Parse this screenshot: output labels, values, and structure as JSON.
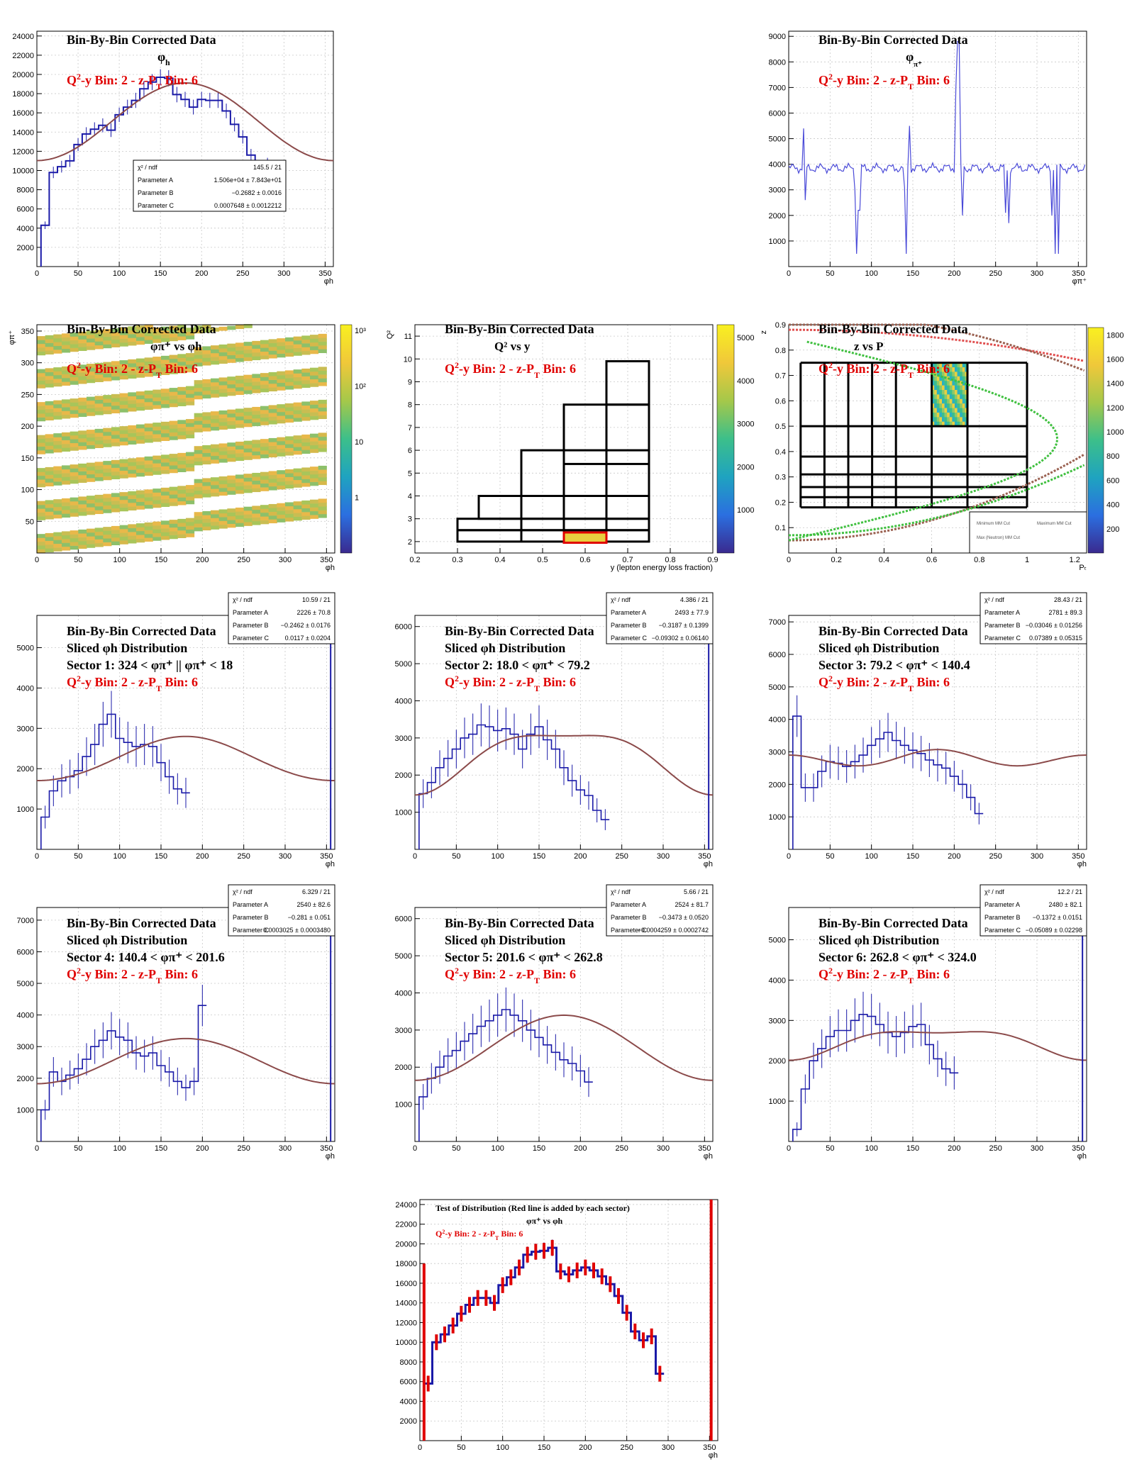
{
  "colors": {
    "hist": "#1a1aa8",
    "fit": "#8b4a4a",
    "red": "#e00000",
    "frame": "#000000",
    "grid": "#c8c8c8"
  },
  "common": {
    "title": "Bin-By-Bin Corrected Data",
    "bin": "Q²-y Bin: 2  -  z-Pₜ Bin: 6",
    "bin_parts": [
      "Q",
      "2",
      "-y Bin: 2  -  z-P",
      "T",
      " Bin: 6"
    ]
  },
  "chart_data": [
    {
      "id": "phi_h",
      "type": "histogram",
      "title": "Bin-By-Bin Corrected Data",
      "subtitle": "φh",
      "xlabel": "φh",
      "xlim": [
        0,
        360
      ],
      "ylim": [
        0,
        24500
      ],
      "yticks": [
        2000,
        4000,
        6000,
        8000,
        10000,
        12000,
        14000,
        16000,
        18000,
        20000,
        22000,
        24000
      ],
      "xticks": [
        0,
        50,
        100,
        150,
        200,
        250,
        300,
        350
      ],
      "bin_width": 10,
      "values": [
        4300,
        9800,
        10400,
        11000,
        12700,
        13800,
        14300,
        14700,
        14200,
        15800,
        16600,
        17300,
        18500,
        19200,
        19700,
        19600,
        17900,
        17400,
        16600,
        17400,
        17300,
        17300,
        16200,
        14800,
        13500,
        11600,
        10400,
        10700,
        6800
      ],
      "first_bin_start": 5,
      "fit": {
        "chi2_ndf": "145.5 / 21",
        "A": "1.506e+04 ± 7.843e+01",
        "B": "−0.2682 ± 0.0016",
        "C": "0.0007648 ± 0.0012212",
        "a": 15060,
        "b": -0.2682,
        "c": 0.00076
      }
    },
    {
      "id": "phi_pip",
      "type": "histogram",
      "title": "Bin-By-Bin Corrected Data",
      "subtitle": "φπ⁺",
      "xlabel": "φπ⁺",
      "xlim": [
        0,
        360
      ],
      "ylim": [
        0,
        9200
      ],
      "yticks": [
        1000,
        2000,
        3000,
        4000,
        5000,
        6000,
        7000,
        8000,
        9000
      ],
      "xticks": [
        0,
        50,
        100,
        150,
        200,
        250,
        300,
        350
      ],
      "baseline": 3850,
      "spikes": [
        [
          18,
          5400
        ],
        [
          20,
          2600
        ],
        [
          80,
          3000
        ],
        [
          82,
          500
        ],
        [
          85,
          2200
        ],
        [
          140,
          3100
        ],
        [
          142,
          500
        ],
        [
          146,
          5500
        ],
        [
          205,
          8800
        ],
        [
          202,
          7000
        ],
        [
          210,
          2000
        ],
        [
          262,
          2100
        ],
        [
          266,
          1700
        ],
        [
          318,
          2000
        ],
        [
          322,
          500
        ],
        [
          326,
          500
        ]
      ]
    },
    {
      "id": "phi_pip_vs_phi_h",
      "type": "heatmap",
      "title": "Bin-By-Bin Corrected Data",
      "subtitle": "φπ⁺ vs φh",
      "xlabel": "φh",
      "ylabel": "φπ⁺",
      "xlim": [
        0,
        360
      ],
      "ylim": [
        0,
        360
      ],
      "xticks": [
        0,
        50,
        100,
        150,
        200,
        250,
        300,
        350
      ],
      "yticks": [
        50,
        100,
        150,
        200,
        250,
        300,
        350
      ],
      "zscale": "log",
      "zticks": [
        "1",
        "10",
        "10²",
        "10³"
      ]
    },
    {
      "id": "q2_vs_y",
      "type": "heatmap",
      "title": "Bin-By-Bin Corrected Data",
      "subtitle": "Q² vs y",
      "xlabel": "y (lepton energy loss fraction)",
      "ylabel": "Q²",
      "xlim": [
        0.2,
        0.9
      ],
      "ylim": [
        1.5,
        11.5
      ],
      "xticks": [
        "0.2",
        "0.3",
        "0.4",
        "0.5",
        "0.6",
        "0.7",
        "0.8",
        "0.9"
      ],
      "yticks": [
        2,
        3,
        4,
        5,
        6,
        7,
        8,
        9,
        10,
        11
      ],
      "zticks": [
        "1000",
        "2000",
        "3000",
        "4000",
        "5000"
      ],
      "bin_boxes": [
        [
          0.3,
          0.75,
          2,
          2.5
        ],
        [
          0.3,
          0.75,
          2.5,
          3
        ],
        [
          0.35,
          0.75,
          3,
          4
        ],
        [
          0.45,
          0.75,
          4,
          6
        ],
        [
          0.55,
          0.75,
          5.4,
          8
        ],
        [
          0.65,
          0.75,
          8,
          9.9
        ]
      ],
      "highlight": [
        0.55,
        0.65,
        1.95,
        2.4
      ]
    },
    {
      "id": "z_vs_pt",
      "type": "heatmap",
      "title": "Bin-By-Bin Corrected Data",
      "subtitle": "z vs Pₜ",
      "xlabel": "Pₜ",
      "ylabel": "z",
      "xlim": [
        0,
        1.25
      ],
      "ylim": [
        0,
        0.9
      ],
      "xticks": [
        "0",
        "0.2",
        "0.4",
        "0.6",
        "0.8",
        "1",
        "1.2"
      ],
      "yticks": [
        "0.1",
        "0.2",
        "0.3",
        "0.4",
        "0.5",
        "0.6",
        "0.7",
        "0.8",
        "0.9"
      ],
      "zticks": [
        "200",
        "400",
        "600",
        "800",
        "1000",
        "1200",
        "1400",
        "1600",
        "1800"
      ],
      "legend": [
        "Minimum MM Cut",
        "Maximum MM Cut",
        "Max (Neutron) MM Cut"
      ]
    },
    {
      "id": "s1",
      "type": "histogram",
      "title": "Bin-By-Bin Corrected Data",
      "line2": "Sliced  φh  Distribution",
      "sector": "Sector 1:   324 <  φπ⁺ || φπ⁺ < 18",
      "xlabel": "φh",
      "xlim": [
        0,
        360
      ],
      "ylim": [
        0,
        5800
      ],
      "yticks": [
        1000,
        2000,
        3000,
        4000,
        5000
      ],
      "xticks": [
        0,
        50,
        100,
        150,
        200,
        250,
        300,
        350
      ],
      "bin_width": 10,
      "values": [
        800,
        1450,
        1700,
        1800,
        1950,
        2300,
        2600,
        3100,
        3350,
        2750,
        2650,
        2550,
        2600,
        2550,
        2150,
        1800,
        1500,
        1400
      ],
      "first_bin_start": 5,
      "fit": {
        "chi2_ndf": "10.59 / 21",
        "A": "2226  ± 70.8",
        "B": "−0.2462  ± 0.0176",
        "C": "0.0117  ± 0.0204",
        "a": 2226,
        "b": -0.2462,
        "c": 0.0117
      },
      "right_edge": 5800
    },
    {
      "id": "s2",
      "type": "histogram",
      "title": "Bin-By-Bin Corrected Data",
      "line2": "Sliced  φh  Distribution",
      "sector": "Sector 2:   18.0 <  φπ⁺ < 79.2",
      "xlabel": "φh",
      "xlim": [
        0,
        360
      ],
      "ylim": [
        0,
        6300
      ],
      "yticks": [
        1000,
        2000,
        3000,
        4000,
        5000,
        6000
      ],
      "xticks": [
        0,
        50,
        100,
        150,
        200,
        250,
        300,
        350
      ],
      "bin_width": 10,
      "values": [
        1500,
        1800,
        2200,
        2450,
        2700,
        3000,
        3100,
        3350,
        3300,
        3200,
        3250,
        3100,
        2700,
        3100,
        3300,
        2950,
        2700,
        2200,
        1850,
        1600,
        1450,
        1050,
        800
      ],
      "first_bin_start": 5,
      "fit": {
        "chi2_ndf": "4.386 / 21",
        "A": "2493 ± 77.9",
        "B": "−0.3187 ± 0.1399",
        "C": "−0.09302 ± 0.06140",
        "a": 2493,
        "b": -0.3187,
        "c": -0.093
      },
      "right_edge": 6000
    },
    {
      "id": "s3",
      "type": "histogram",
      "title": "Bin-By-Bin Corrected Data",
      "line2": "Sliced  φh  Distribution",
      "sector": "Sector 3:   79.2 <  φπ⁺ < 140.4",
      "xlabel": "φh",
      "xlim": [
        0,
        360
      ],
      "ylim": [
        0,
        7200
      ],
      "yticks": [
        1000,
        2000,
        3000,
        4000,
        5000,
        6000,
        7000
      ],
      "xticks": [
        0,
        50,
        100,
        150,
        200,
        250,
        300,
        350
      ],
      "bin_width": 10,
      "values": [
        4100,
        1900,
        1900,
        2400,
        2700,
        2650,
        2550,
        2700,
        2900,
        3200,
        3400,
        3600,
        3350,
        3200,
        3050,
        2950,
        2750,
        2600,
        2500,
        2250,
        2000,
        1600,
        1100
      ],
      "first_bin_start": 5,
      "fit": {
        "chi2_ndf": "28.43 / 21",
        "A": "2781 ± 89.3",
        "B": "−0.03046 ± 0.01256",
        "C": "0.07389 ± 0.05315",
        "a": 2781,
        "b": -0.0305,
        "c": 0.0739
      }
    },
    {
      "id": "s4",
      "type": "histogram",
      "title": "Bin-By-Bin Corrected Data",
      "line2": "Sliced  φh  Distribution",
      "sector": "Sector 4:   140.4 <  φπ⁺ < 201.6",
      "xlabel": "φh",
      "xlim": [
        0,
        360
      ],
      "ylim": [
        0,
        7400
      ],
      "yticks": [
        1000,
        2000,
        3000,
        4000,
        5000,
        6000,
        7000
      ],
      "xticks": [
        0,
        50,
        100,
        150,
        200,
        250,
        300,
        350
      ],
      "bin_width": 10,
      "values": [
        1000,
        2200,
        1900,
        2100,
        2300,
        2600,
        3000,
        3200,
        3500,
        3300,
        3200,
        2800,
        2700,
        2800,
        2400,
        2200,
        1900,
        1700,
        1900,
        4300
      ],
      "first_bin_start": 5,
      "fit": {
        "chi2_ndf": "6.329 / 21",
        "A": "2540 ± 82.6",
        "B": "−0.281 ± 0.051",
        "C": "0.0003025 ± 0.0003480",
        "a": 2540,
        "b": -0.281,
        "c": 0.0003
      },
      "right_edge": 7400
    },
    {
      "id": "s5",
      "type": "histogram",
      "title": "Bin-By-Bin Corrected Data",
      "line2": "Sliced  φh  Distribution",
      "sector": "Sector 5:   201.6 <  φπ⁺ < 262.8",
      "xlabel": "φh",
      "xlim": [
        0,
        360
      ],
      "ylim": [
        0,
        6300
      ],
      "yticks": [
        1000,
        2000,
        3000,
        4000,
        5000,
        6000
      ],
      "xticks": [
        0,
        50,
        100,
        150,
        200,
        250,
        300,
        350
      ],
      "bin_width": 10,
      "values": [
        1200,
        1700,
        2000,
        2300,
        2450,
        2700,
        2900,
        3100,
        3250,
        3400,
        3550,
        3400,
        3250,
        3000,
        2800,
        2600,
        2400,
        2200,
        2100,
        1900,
        1600
      ],
      "first_bin_start": 5,
      "fit": {
        "chi2_ndf": "5.66 / 21",
        "A": "2524  ± 81.7",
        "B": "−0.3473  ± 0.0520",
        "C": "−0.0004259  ± 0.0002742",
        "a": 2524,
        "b": -0.3473,
        "c": -0.0004
      }
    },
    {
      "id": "s6",
      "type": "histogram",
      "title": "Bin-By-Bin Corrected Data",
      "line2": "Sliced  φh  Distribution",
      "sector": "Sector 6:   262.8 <  φπ⁺ < 324.0",
      "xlabel": "φh",
      "xlim": [
        0,
        360
      ],
      "ylim": [
        0,
        5800
      ],
      "yticks": [
        1000,
        2000,
        3000,
        4000,
        5000
      ],
      "xticks": [
        0,
        50,
        100,
        150,
        200,
        250,
        300,
        350
      ],
      "bin_width": 10,
      "values": [
        300,
        1300,
        2000,
        2300,
        2600,
        2750,
        2750,
        3000,
        3150,
        3100,
        2900,
        2700,
        2600,
        2700,
        2850,
        2900,
        2400,
        2050,
        1800,
        1700
      ],
      "first_bin_start": 5,
      "fit": {
        "chi2_ndf": "12.2 / 21",
        "A": "2480 ± 82.1",
        "B": "−0.1372 ± 0.0151",
        "C": "−0.05089 ± 0.02298",
        "a": 2480,
        "b": -0.1372,
        "c": -0.0509
      },
      "right_edge": 5800
    },
    {
      "id": "test",
      "type": "histogram",
      "title": "Test of Distribution (Red line is added by each sector)",
      "subtitle": "φπ⁺ vs φh",
      "xlabel": "φh",
      "xlim": [
        0,
        360
      ],
      "ylim": [
        0,
        24500
      ],
      "yticks": [
        2000,
        4000,
        6000,
        8000,
        10000,
        12000,
        14000,
        16000,
        18000,
        20000,
        22000,
        24000
      ],
      "xticks": [
        0,
        50,
        100,
        150,
        200,
        250,
        300,
        350
      ],
      "bin_width": 10,
      "values": [
        5800,
        10000,
        10800,
        11700,
        12900,
        13800,
        14500,
        14500,
        14000,
        15800,
        16600,
        17600,
        18900,
        19200,
        19300,
        19600,
        17200,
        16900,
        17300,
        17600,
        17300,
        16700,
        15900,
        14700,
        13000,
        11100,
        10200,
        10600,
        6800
      ],
      "first_bin_start": 5
    }
  ]
}
